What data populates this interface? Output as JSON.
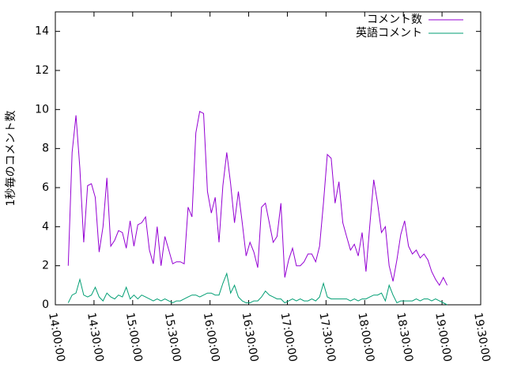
{
  "chart_data": {
    "type": "line",
    "ylabel": "1秒毎のコメント数",
    "x": [
      "14:10:00",
      "14:13:00",
      "14:16:00",
      "14:19:00",
      "14:22:00",
      "14:25:00",
      "14:28:00",
      "14:31:00",
      "14:34:00",
      "14:37:00",
      "14:40:00",
      "14:43:00",
      "14:46:00",
      "14:49:00",
      "14:52:00",
      "14:55:00",
      "14:58:00",
      "15:01:00",
      "15:04:00",
      "15:07:00",
      "15:10:00",
      "15:13:00",
      "15:16:00",
      "15:19:00",
      "15:22:00",
      "15:25:00",
      "15:28:00",
      "15:31:00",
      "15:34:00",
      "15:37:00",
      "15:40:00",
      "15:43:00",
      "15:46:00",
      "15:49:00",
      "15:52:00",
      "15:55:00",
      "15:58:00",
      "16:01:00",
      "16:04:00",
      "16:07:00",
      "16:10:00",
      "16:13:00",
      "16:16:00",
      "16:19:00",
      "16:22:00",
      "16:25:00",
      "16:28:00",
      "16:31:00",
      "16:34:00",
      "16:37:00",
      "16:40:00",
      "16:43:00",
      "16:46:00",
      "16:49:00",
      "16:52:00",
      "16:55:00",
      "16:58:00",
      "17:01:00",
      "17:04:00",
      "17:07:00",
      "17:10:00",
      "17:13:00",
      "17:16:00",
      "17:19:00",
      "17:22:00",
      "17:25:00",
      "17:28:00",
      "17:31:00",
      "17:34:00",
      "17:37:00",
      "17:40:00",
      "17:43:00",
      "17:46:00",
      "17:49:00",
      "17:52:00",
      "17:55:00",
      "17:58:00",
      "18:01:00",
      "18:04:00",
      "18:07:00",
      "18:10:00",
      "18:13:00",
      "18:16:00",
      "18:19:00",
      "18:22:00",
      "18:25:00",
      "18:28:00",
      "18:31:00",
      "18:34:00",
      "18:37:00",
      "18:40:00",
      "18:43:00",
      "18:46:00",
      "18:49:00",
      "18:52:00",
      "18:55:00",
      "18:58:00",
      "19:01:00",
      "19:04:00"
    ],
    "series": [
      {
        "name": "コメント数",
        "color": "#9400d3",
        "values": [
          2.0,
          7.8,
          9.7,
          7,
          3.2,
          6.1,
          6.2,
          5.5,
          2.7,
          4,
          6.5,
          3,
          3.3,
          3.8,
          3.7,
          2.9,
          4.3,
          3,
          4.1,
          4.2,
          4.5,
          2.8,
          2.1,
          4.0,
          2.0,
          3.5,
          2.8,
          2.1,
          2.2,
          2.2,
          2.1,
          5.0,
          4.5,
          8.8,
          9.9,
          9.8,
          5.8,
          4.7,
          5.5,
          3.2,
          6.1,
          7.8,
          6.2,
          4.2,
          5.8,
          4.2,
          2.5,
          3.2,
          2.7,
          1.9,
          5.0,
          5.2,
          4.2,
          3.2,
          3.5,
          5.2,
          1.4,
          2.3,
          2.9,
          2.0,
          2.0,
          2.2,
          2.6,
          2.6,
          2.2,
          3.0,
          5.2,
          7.7,
          7.5,
          5.2,
          6.3,
          4.2,
          3.5,
          2.8,
          3.1,
          2.5,
          3.7,
          1.7,
          4.1,
          6.4,
          5.2,
          3.7,
          4.0,
          2.0,
          1.2,
          2.3,
          3.6,
          4.3,
          3.0,
          2.6,
          2.8,
          2.4,
          2.6,
          2.3,
          1.7,
          1.3,
          1.0,
          1.4,
          1.0
        ]
      },
      {
        "name": "英語コメント",
        "color": "#009e73",
        "values": [
          0.1,
          0.5,
          0.6,
          1.3,
          0.5,
          0.4,
          0.5,
          0.9,
          0.4,
          0.2,
          0.6,
          0.4,
          0.3,
          0.5,
          0.4,
          0.9,
          0.3,
          0.5,
          0.3,
          0.5,
          0.4,
          0.3,
          0.2,
          0.3,
          0.2,
          0.3,
          0.2,
          0.1,
          0.2,
          0.2,
          0.3,
          0.4,
          0.5,
          0.5,
          0.4,
          0.5,
          0.6,
          0.6,
          0.5,
          0.5,
          1.1,
          1.6,
          0.6,
          1.0,
          0.4,
          0.2,
          0.1,
          0.1,
          0.2,
          0.2,
          0.4,
          0.7,
          0.5,
          0.4,
          0.3,
          0.3,
          0.1,
          0.2,
          0.3,
          0.2,
          0.3,
          0.2,
          0.2,
          0.3,
          0.2,
          0.4,
          1.1,
          0.4,
          0.3,
          0.3,
          0.3,
          0.3,
          0.3,
          0.2,
          0.3,
          0.2,
          0.3,
          0.3,
          0.4,
          0.5,
          0.5,
          0.6,
          0.2,
          1.0,
          0.5,
          0.1,
          0.2,
          0.2,
          0.2,
          0.2,
          0.3,
          0.2,
          0.3,
          0.3,
          0.2,
          0.3,
          0.2,
          0.1,
          0.0
        ]
      }
    ],
    "xlim": [
      "14:00:00",
      "19:30:00"
    ],
    "xticks": [
      "14:00:00",
      "14:30:00",
      "15:00:00",
      "15:30:00",
      "16:00:00",
      "16:30:00",
      "17:00:00",
      "17:30:00",
      "18:00:00",
      "18:30:00",
      "19:00:00",
      "19:30:00"
    ],
    "ylim": [
      0,
      15
    ],
    "yticks": [
      0,
      2,
      4,
      6,
      8,
      10,
      12,
      14
    ],
    "legend": "top right"
  }
}
